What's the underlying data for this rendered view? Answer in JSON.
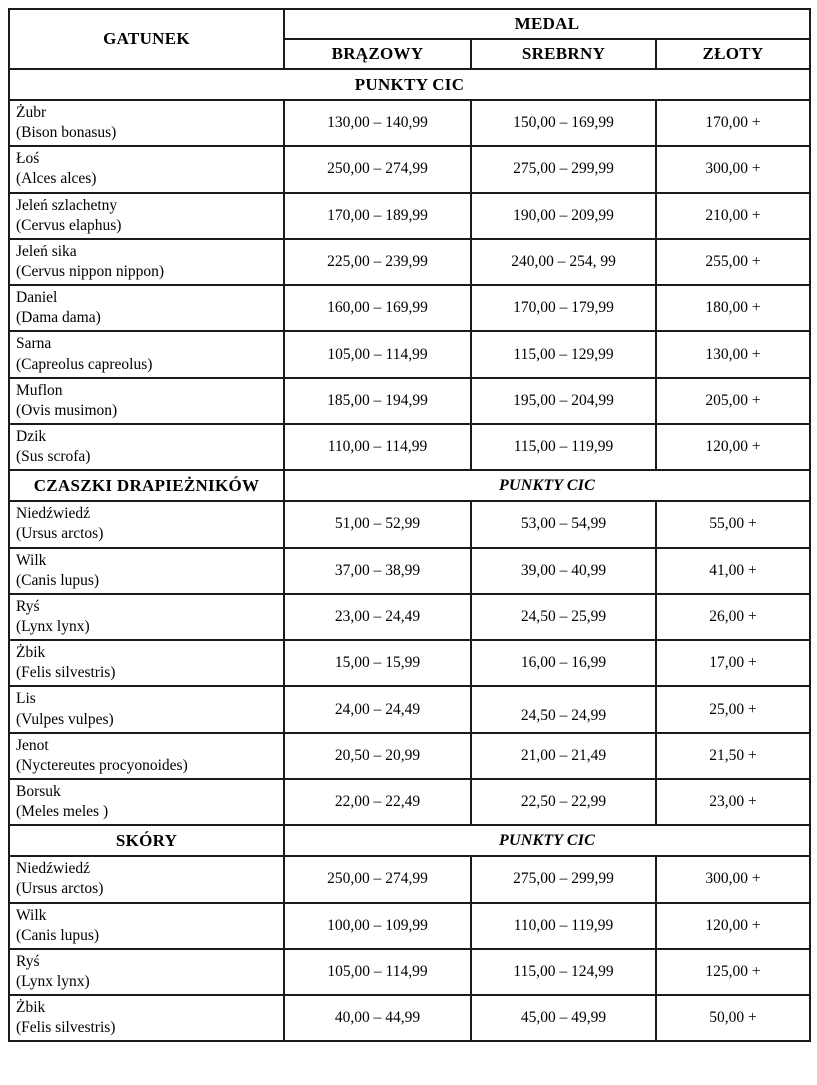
{
  "table": {
    "header": {
      "gatunek": "GATUNEK",
      "medal": "MEDAL",
      "bronze": "BRĄZOWY",
      "silver": "SREBRNY",
      "gold": "ZŁOTY"
    },
    "sections": [
      {
        "label": "PUNKTY CIC",
        "label_spans_all_columns": true,
        "label_italic": false,
        "rows": [
          {
            "name": "Żubr",
            "latin": "(Bison bonasus)",
            "bronze": "130,00 – 140,99",
            "silver": "150,00 – 169,99",
            "gold": "170,00 +"
          },
          {
            "name": "Łoś",
            "latin": "(Alces alces)",
            "bronze": "250,00 – 274,99",
            "silver": "275,00 – 299,99",
            "gold": "300,00 +"
          },
          {
            "name": "Jeleń szlachetny",
            "latin": "(Cervus elaphus)",
            "bronze": "170,00 – 189,99",
            "silver": "190,00 – 209,99",
            "gold": "210,00 +"
          },
          {
            "name": "Jeleń sika",
            "latin": "(Cervus nippon nippon)",
            "bronze": "225,00 – 239,99",
            "silver": "240,00 – 254, 99",
            "gold": "255,00 +"
          },
          {
            "name": "Daniel",
            "latin": "(Dama dama)",
            "bronze": "160,00 – 169,99",
            "silver": "170,00 – 179,99",
            "gold": "180,00 +"
          },
          {
            "name": "Sarna",
            "latin": "(Capreolus capreolus)",
            "bronze": "105,00 – 114,99",
            "silver": "115,00 – 129,99",
            "gold": "130,00 +"
          },
          {
            "name": "Muflon",
            "latin": "(Ovis musimon)",
            "bronze": "185,00 – 194,99",
            "silver": "195,00 – 204,99",
            "gold": "205,00 +"
          },
          {
            "name": "Dzik",
            "latin": "(Sus scrofa)",
            "bronze": "110,00 – 114,99",
            "silver": "115,00 – 119,99",
            "gold": "120,00 +"
          }
        ]
      },
      {
        "label": "CZASZKI DRAPIEŻNIKÓW",
        "label_spans_all_columns": false,
        "sublabel": "PUNKTY CIC",
        "sublabel_italic": true,
        "rows": [
          {
            "name": "Niedźwiedź",
            "latin": "(Ursus arctos)",
            "bronze": "51,00 – 52,99",
            "silver": "53,00 – 54,99",
            "gold": "55,00 +"
          },
          {
            "name": "Wilk",
            "latin": "(Canis lupus)",
            "bronze": "37,00 – 38,99",
            "silver": "39,00 – 40,99",
            "gold": "41,00 +"
          },
          {
            "name": "Ryś",
            "latin": "(Lynx lynx)",
            "bronze": "23,00 – 24,49",
            "silver": "24,50 – 25,99",
            "gold": "26,00 +"
          },
          {
            "name": "Żbik",
            "latin": "(Felis silvestris)",
            "bronze": "15,00 – 15,99",
            "silver": "16,00 – 16,99",
            "gold": "17,00 +"
          },
          {
            "name": "Lis",
            "latin": "(Vulpes vulpes)",
            "bronze": "24,00 – 24,49",
            "silver": "24,50 – 24,99",
            "gold": "25,00 +",
            "silver_low": true
          },
          {
            "name": "Jenot",
            "latin": "(Nyctereutes procyonoides)",
            "bronze": "20,50 – 20,99",
            "silver": "21,00 – 21,49",
            "gold": "21,50 +"
          },
          {
            "name": "Borsuk",
            "latin": "(Meles meles )",
            "bronze": "22,00 – 22,49",
            "silver": "22,50 – 22,99",
            "gold": "23,00 +"
          }
        ]
      },
      {
        "label": "SKÓRY",
        "label_spans_all_columns": false,
        "sublabel": "PUNKTY CIC",
        "sublabel_italic": true,
        "rows": [
          {
            "name": "Niedźwiedź",
            "latin": "(Ursus arctos)",
            "bronze": "250,00 – 274,99",
            "silver": "275,00 – 299,99",
            "gold": "300,00 +"
          },
          {
            "name": "Wilk",
            "latin": "(Canis lupus)",
            "bronze": "100,00 – 109,99",
            "silver": "110,00 – 119,99",
            "gold": "120,00 +"
          },
          {
            "name": "Ryś",
            "latin": "(Lynx lynx)",
            "bronze": "105,00 – 114,99",
            "silver": "115,00 – 124,99",
            "gold": "125,00 +"
          },
          {
            "name": "Żbik",
            "latin": "(Felis silvestris)",
            "bronze": "40,00 – 44,99",
            "silver": "45,00 – 49,99",
            "gold": "50,00 +"
          }
        ]
      }
    ]
  }
}
